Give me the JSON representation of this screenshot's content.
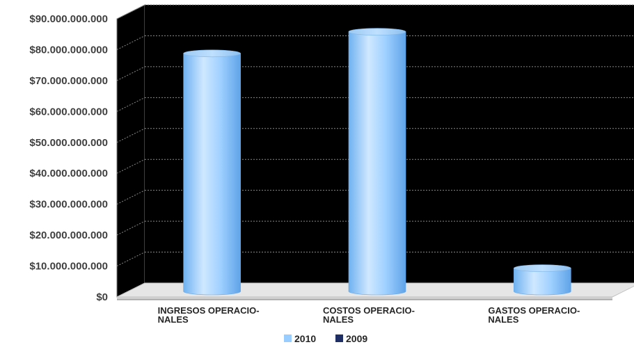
{
  "chart_data": {
    "type": "bar",
    "categories": [
      [
        "INGRESOS OPERACIO-",
        "NALES"
      ],
      [
        "COSTOS OPERACIO-",
        "NALES"
      ],
      [
        "GASTOS OPERACIO-",
        "NALES"
      ]
    ],
    "series": [
      {
        "name": "2010",
        "values": [
          77000000000,
          84000000000,
          7500000000
        ],
        "color": "#99ccff"
      },
      {
        "name": "2009",
        "values": [
          0,
          0,
          0
        ],
        "color": "#1f2f66"
      }
    ],
    "ylim": [
      0,
      90000000000
    ],
    "yticks": [
      "$0",
      "$10.000.000.000",
      "$20.000.000.000",
      "$30.000.000.000",
      "$40.000.000.000",
      "$50.000.000.000",
      "$60.000.000.000",
      "$70.000.000.000",
      "$80.000.000.000",
      "$90.000.000.000"
    ],
    "title": "",
    "xlabel": "",
    "ylabel": "",
    "style": "3d-cylinder",
    "plot_background": "#000000",
    "grid": true,
    "legend_position": "bottom"
  }
}
